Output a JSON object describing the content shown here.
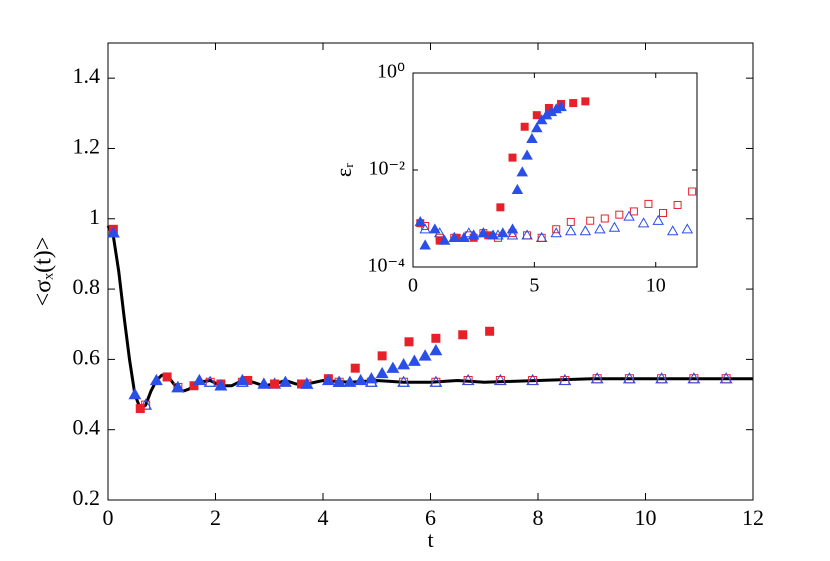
{
  "chart_data": [
    {
      "type": "scatter",
      "xlabel": "t",
      "ylabel": "<σₓ(t)>",
      "xlim": [
        0,
        12
      ],
      "ylim": [
        0.2,
        1.5
      ],
      "xticks": [
        0,
        2,
        4,
        6,
        8,
        10,
        12
      ],
      "yticks": [
        0.2,
        0.4,
        0.6,
        0.8,
        1,
        1.2,
        1.4
      ],
      "series": [
        {
          "marker": "line",
          "color": "#000000",
          "x": [
            0,
            0.1,
            0.2,
            0.3,
            0.4,
            0.5,
            0.6,
            0.7,
            0.8,
            0.9,
            1.0,
            1.1,
            1.2,
            1.3,
            1.4,
            1.5,
            1.7,
            1.9,
            2.1,
            2.3,
            2.5,
            2.7,
            2.9,
            3.1,
            3.3,
            3.5,
            3.7,
            4.0,
            4.5,
            5,
            5.5,
            6,
            6.5,
            7,
            8,
            9,
            10,
            11,
            12
          ],
          "values": [
            0.98,
            0.95,
            0.85,
            0.72,
            0.6,
            0.5,
            0.46,
            0.47,
            0.51,
            0.54,
            0.555,
            0.555,
            0.535,
            0.515,
            0.51,
            0.515,
            0.535,
            0.54,
            0.525,
            0.525,
            0.54,
            0.535,
            0.525,
            0.53,
            0.54,
            0.53,
            0.53,
            0.54,
            0.535,
            0.54,
            0.535,
            0.535,
            0.54,
            0.535,
            0.54,
            0.545,
            0.545,
            0.545,
            0.545
          ]
        },
        {
          "marker": "open-square",
          "color": "#e8202a",
          "x": [
            0.7,
            1.3,
            1.9,
            2.5,
            3.1,
            3.7,
            4.3,
            4.9,
            5.5,
            6.1,
            6.7,
            7.3,
            7.9,
            8.5,
            9.1,
            9.7,
            10.3,
            10.9,
            11.5
          ],
          "values": [
            0.47,
            0.52,
            0.535,
            0.535,
            0.53,
            0.53,
            0.535,
            0.535,
            0.535,
            0.535,
            0.54,
            0.54,
            0.54,
            0.54,
            0.545,
            0.545,
            0.545,
            0.545,
            0.545
          ]
        },
        {
          "marker": "open-triangle",
          "color": "#2a4fe8",
          "x": [
            0.7,
            1.3,
            1.9,
            2.5,
            3.1,
            3.7,
            4.3,
            4.9,
            5.5,
            6.1,
            6.7,
            7.3,
            7.9,
            8.5,
            9.1,
            9.7,
            10.3,
            10.9,
            11.5
          ],
          "values": [
            0.47,
            0.52,
            0.535,
            0.535,
            0.53,
            0.53,
            0.535,
            0.535,
            0.535,
            0.535,
            0.54,
            0.54,
            0.54,
            0.54,
            0.545,
            0.545,
            0.545,
            0.545,
            0.545
          ]
        },
        {
          "marker": "square",
          "color": "#e8202a",
          "x": [
            0.1,
            0.6,
            1.1,
            1.6,
            2.1,
            2.6,
            3.1,
            3.6,
            4.1,
            4.6,
            5.1,
            5.6,
            6.1,
            6.6,
            7.1
          ],
          "values": [
            0.97,
            0.46,
            0.55,
            0.525,
            0.53,
            0.54,
            0.53,
            0.53,
            0.545,
            0.575,
            0.61,
            0.65,
            0.66,
            0.67,
            0.68
          ]
        },
        {
          "marker": "triangle",
          "color": "#2a4fe8",
          "x": [
            0.1,
            0.5,
            0.9,
            1.3,
            1.7,
            2.1,
            2.5,
            2.9,
            3.3,
            3.7,
            4.1,
            4.3,
            4.5,
            4.7,
            4.9,
            5.1,
            5.3,
            5.5,
            5.7,
            5.9,
            6.1
          ],
          "values": [
            0.96,
            0.5,
            0.54,
            0.52,
            0.54,
            0.525,
            0.54,
            0.53,
            0.535,
            0.53,
            0.54,
            0.535,
            0.535,
            0.54,
            0.545,
            0.56,
            0.575,
            0.585,
            0.595,
            0.61,
            0.625
          ]
        }
      ]
    },
    {
      "type": "scatter",
      "log_y": true,
      "ylabel": "εᵣ",
      "xlim": [
        0,
        11.7
      ],
      "ylim": [
        0.0001,
        1
      ],
      "xticks": [
        0,
        5,
        10
      ],
      "yticks": [
        {
          "value": 0.0001,
          "label": "10⁻⁴"
        },
        {
          "value": 0.01,
          "label": "10⁻²"
        },
        {
          "value": 1,
          "label": "10⁰"
        }
      ],
      "series": [
        {
          "marker": "open-square",
          "color": "#e8202a",
          "x": [
            0.5,
            1.1,
            1.7,
            2.3,
            2.9,
            3.5,
            4.1,
            4.7,
            5.3,
            5.9,
            6.5,
            7.3,
            7.9,
            8.5,
            9.1,
            9.7,
            10.3,
            10.9,
            11.5
          ],
          "values": [
            0.0007,
            0.0004,
            0.0004,
            0.00045,
            0.0005,
            0.0004,
            0.0005,
            0.00045,
            0.0004,
            0.0006,
            0.00085,
            0.0009,
            0.001,
            0.0012,
            0.0014,
            0.002,
            0.0013,
            0.0019,
            0.0036
          ]
        },
        {
          "marker": "open-triangle",
          "color": "#2a4fe8",
          "x": [
            0.5,
            1.1,
            1.7,
            2.3,
            2.9,
            3.5,
            4.1,
            4.7,
            5.3,
            5.9,
            6.5,
            7.1,
            7.7,
            8.3,
            8.9,
            9.5,
            10.1,
            10.7,
            11.3
          ],
          "values": [
            0.0006,
            0.0005,
            0.0004,
            0.0005,
            0.0005,
            0.00045,
            0.00045,
            0.00045,
            0.0004,
            0.0005,
            0.00055,
            0.00055,
            0.0006,
            0.00065,
            0.0011,
            0.0008,
            0.0009,
            0.00055,
            0.0006
          ]
        },
        {
          "marker": "square",
          "color": "#e8202a",
          "x": [
            0.3,
            1.1,
            1.8,
            2.5,
            3.1,
            3.6,
            4.1,
            4.6,
            5.1,
            5.6,
            6.1,
            6.6,
            7.1
          ],
          "values": [
            0.0008,
            0.00035,
            0.0004,
            0.0004,
            0.00045,
            0.0017,
            0.018,
            0.078,
            0.135,
            0.19,
            0.23,
            0.24,
            0.26
          ]
        },
        {
          "marker": "triangle",
          "color": "#2a4fe8",
          "x": [
            0.3,
            0.5,
            0.9,
            1.3,
            1.7,
            2.1,
            2.5,
            2.9,
            3.3,
            3.7,
            4.1,
            4.3,
            4.5,
            4.7,
            4.9,
            5.1,
            5.3,
            5.5,
            5.7,
            5.9,
            6.1
          ],
          "values": [
            0.00085,
            0.00028,
            0.0006,
            0.00035,
            0.0004,
            0.0004,
            0.00045,
            0.0005,
            0.00045,
            0.0005,
            0.0006,
            0.0039,
            0.009,
            0.02,
            0.044,
            0.073,
            0.107,
            0.135,
            0.157,
            0.18,
            0.2
          ]
        }
      ]
    }
  ]
}
